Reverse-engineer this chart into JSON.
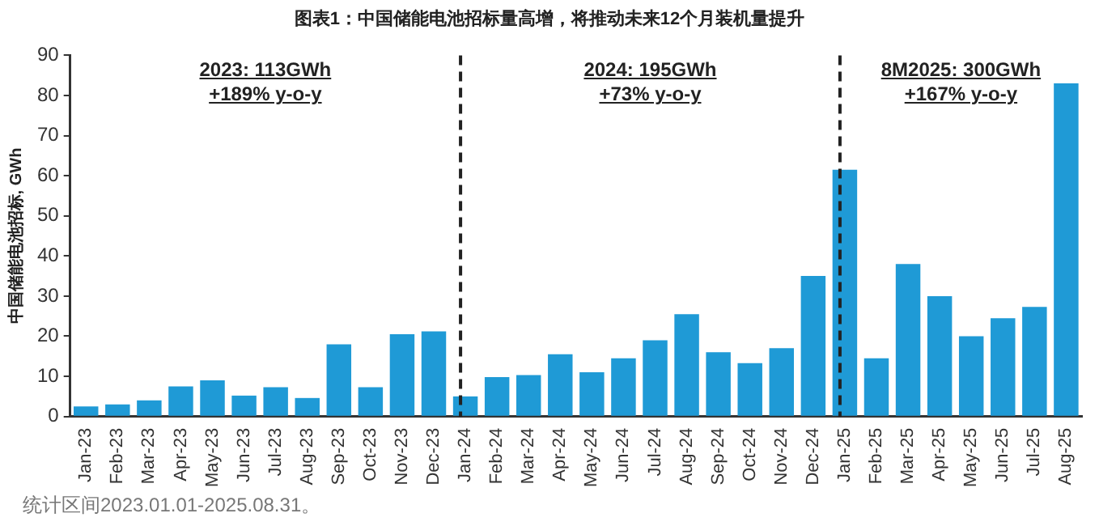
{
  "chart_data": {
    "type": "bar",
    "title": "图表1：中国储能电池招标量高增，将推动未来12个月装机量提升",
    "ylabel": "中国储能电池招标, GWh",
    "categories": [
      "Jan-23",
      "Feb-23",
      "Mar-23",
      "Apr-23",
      "May-23",
      "Jun-23",
      "Jul-23",
      "Aug-23",
      "Sep-23",
      "Oct-23",
      "Nov-23",
      "Dec-23",
      "Jan-24",
      "Feb-24",
      "Mar-24",
      "Apr-24",
      "May-24",
      "Jun-24",
      "Jul-24",
      "Aug-24",
      "Sep-24",
      "Oct-24",
      "Nov-24",
      "Dec-24",
      "Jan-25",
      "Feb-25",
      "Mar-25",
      "Apr-25",
      "May-25",
      "Jun-25",
      "Jul-25",
      "Aug-25"
    ],
    "values": [
      2.5,
      3,
      4,
      7.5,
      9,
      5.2,
      7.3,
      4.6,
      18,
      7.3,
      20.5,
      21.2,
      5,
      9.8,
      10.3,
      15.5,
      11,
      14.5,
      19,
      25.5,
      16,
      13.3,
      17,
      35,
      61.5,
      14.5,
      38,
      30,
      20,
      24.5,
      27.3,
      83
    ],
    "color": "#1f9ad6",
    "ylim": [
      0,
      90
    ],
    "yticks": [
      0,
      10,
      20,
      30,
      40,
      50,
      60,
      70,
      80,
      90
    ],
    "grid": false,
    "legend": false,
    "ref_lines": [
      {
        "axis": "x",
        "value": "Jan-24",
        "color": "#222222",
        "line_style": "dashed"
      },
      {
        "axis": "x",
        "value": "Jan-25",
        "color": "#222222",
        "line_style": "dashed"
      }
    ],
    "annotations": [
      "2023: 113GWh\n+189% y-o-y",
      "2024: 195GWh\n+73% y-o-y",
      "8M2025: 300GWh\n+167% y-o-y",
      "统计区间2023.01.01-2025.08.31。"
    ]
  }
}
